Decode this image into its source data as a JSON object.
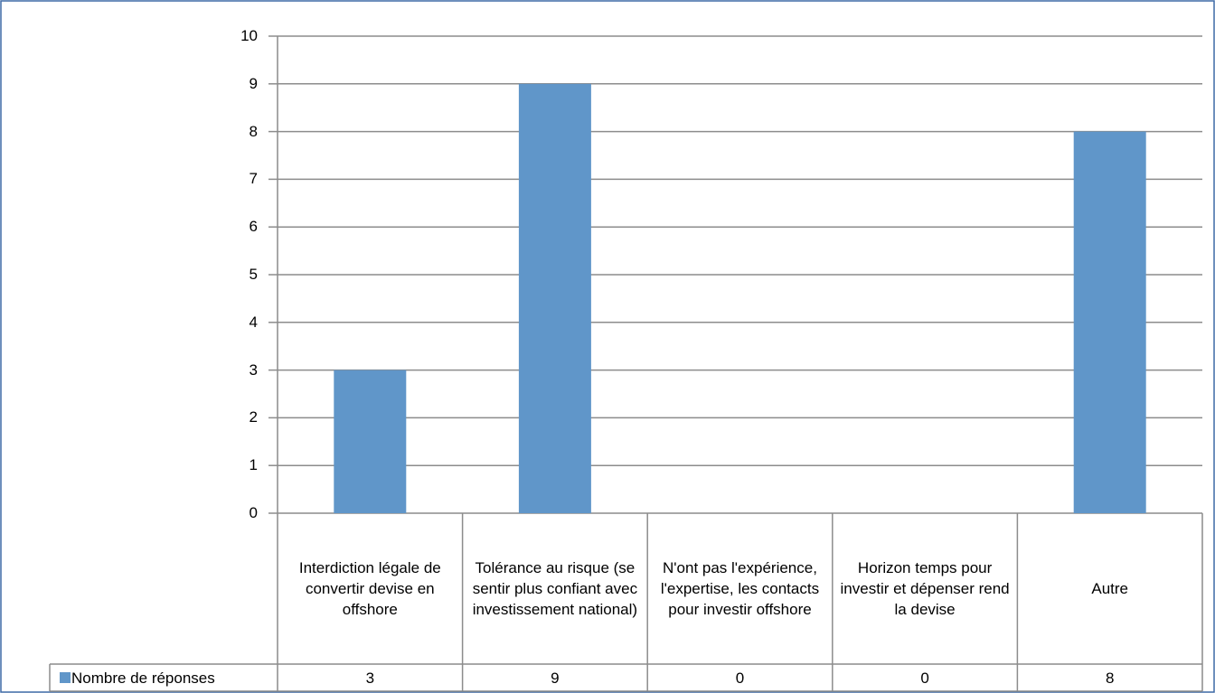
{
  "chart_data": {
    "type": "bar",
    "categories": [
      "Interdiction légale de convertir devise en offshore",
      "Tolérance au risque (se sentir plus confiant avec investissement national)",
      "N'ont pas l'expérience, l'expertise, les contacts pour investir offshore",
      "Horizon temps pour investir et dépenser rend la devise",
      "Autre"
    ],
    "series": [
      {
        "name": "Nombre de réponses",
        "color": "#6096c9",
        "values": [
          3,
          9,
          0,
          0,
          8
        ]
      }
    ],
    "ylim": [
      0,
      10
    ],
    "yticks": [
      0,
      1,
      2,
      3,
      4,
      5,
      6,
      7,
      8,
      9,
      10
    ],
    "grid": true
  }
}
